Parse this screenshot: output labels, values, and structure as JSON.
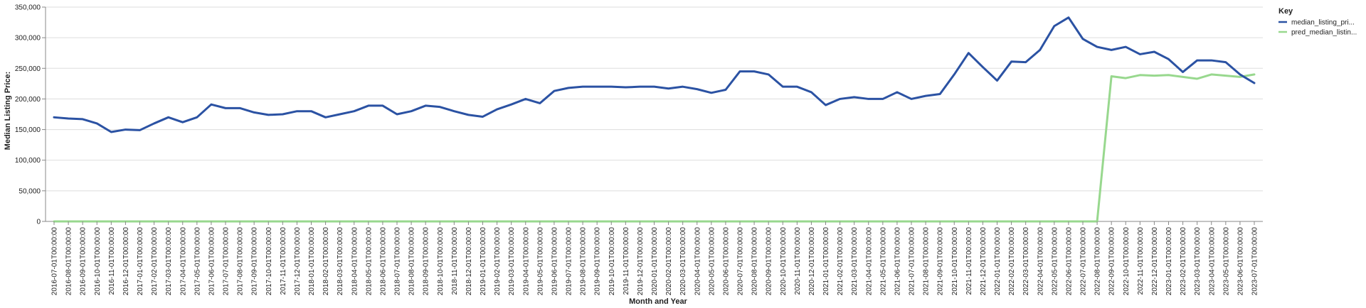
{
  "chart_data": {
    "type": "line",
    "title": "",
    "xlabel": "Month and Year",
    "ylabel": "Median Listing Price:",
    "ylim": [
      0,
      350000
    ],
    "yticks": [
      0,
      50000,
      100000,
      150000,
      200000,
      250000,
      300000,
      350000
    ],
    "ytick_labels": [
      "0",
      "50,000",
      "100,000",
      "150,000",
      "200,000",
      "250,000",
      "300,000",
      "350,000"
    ],
    "grid": true,
    "legend": {
      "title": "Key",
      "placement": "top-right"
    },
    "categories": [
      "2016-07-01T00:00:00",
      "2016-08-01T00:00:00",
      "2016-09-01T00:00:00",
      "2016-10-01T00:00:00",
      "2016-11-01T00:00:00",
      "2016-12-01T00:00:00",
      "2017-01-01T00:00:00",
      "2017-02-01T00:00:00",
      "2017-03-01T00:00:00",
      "2017-04-01T00:00:00",
      "2017-05-01T00:00:00",
      "2017-06-01T00:00:00",
      "2017-07-01T00:00:00",
      "2017-08-01T00:00:00",
      "2017-09-01T00:00:00",
      "2017-10-01T00:00:00",
      "2017-11-01T00:00:00",
      "2017-12-01T00:00:00",
      "2018-01-01T00:00:00",
      "2018-02-01T00:00:00",
      "2018-03-01T00:00:00",
      "2018-04-01T00:00:00",
      "2018-05-01T00:00:00",
      "2018-06-01T00:00:00",
      "2018-07-01T00:00:00",
      "2018-08-01T00:00:00",
      "2018-09-01T00:00:00",
      "2018-10-01T00:00:00",
      "2018-11-01T00:00:00",
      "2018-12-01T00:00:00",
      "2019-01-01T00:00:00",
      "2019-02-01T00:00:00",
      "2019-03-01T00:00:00",
      "2019-04-01T00:00:00",
      "2019-05-01T00:00:00",
      "2019-06-01T00:00:00",
      "2019-07-01T00:00:00",
      "2019-08-01T00:00:00",
      "2019-09-01T00:00:00",
      "2019-10-01T00:00:00",
      "2019-11-01T00:00:00",
      "2019-12-01T00:00:00",
      "2020-01-01T00:00:00",
      "2020-02-01T00:00:00",
      "2020-03-01T00:00:00",
      "2020-04-01T00:00:00",
      "2020-05-01T00:00:00",
      "2020-06-01T00:00:00",
      "2020-07-01T00:00:00",
      "2020-08-01T00:00:00",
      "2020-09-01T00:00:00",
      "2020-10-01T00:00:00",
      "2020-11-01T00:00:00",
      "2020-12-01T00:00:00",
      "2021-01-01T00:00:00",
      "2021-02-01T00:00:00",
      "2021-03-01T00:00:00",
      "2021-04-01T00:00:00",
      "2021-05-01T00:00:00",
      "2021-06-01T00:00:00",
      "2021-07-01T00:00:00",
      "2021-08-01T00:00:00",
      "2021-09-01T00:00:00",
      "2021-10-01T00:00:00",
      "2021-11-01T00:00:00",
      "2021-12-01T00:00:00",
      "2022-01-01T00:00:00",
      "2022-02-01T00:00:00",
      "2022-03-01T00:00:00",
      "2022-04-01T00:00:00",
      "2022-05-01T00:00:00",
      "2022-06-01T00:00:00",
      "2022-07-01T00:00:00",
      "2022-08-01T00:00:00",
      "2022-09-01T00:00:00",
      "2022-10-01T00:00:00",
      "2022-11-01T00:00:00",
      "2022-12-01T00:00:00",
      "2023-01-01T00:00:00",
      "2023-02-01T00:00:00",
      "2023-03-01T00:00:00",
      "2023-04-01T00:00:00",
      "2023-05-01T00:00:00",
      "2023-06-01T00:00:00",
      "2023-07-01T00:00:00"
    ],
    "series": [
      {
        "name": "median_listing_pri...",
        "color": "#2b52a3",
        "values": [
          170000,
          168000,
          167000,
          160000,
          146000,
          150000,
          149000,
          160000,
          170000,
          162000,
          170000,
          191000,
          185000,
          185000,
          178000,
          174000,
          175000,
          180000,
          180000,
          170000,
          175000,
          180000,
          189000,
          189000,
          175000,
          180000,
          189000,
          187000,
          180000,
          174000,
          171000,
          183000,
          191000,
          200000,
          193000,
          213000,
          218000,
          220000,
          220000,
          220000,
          219000,
          220000,
          220000,
          217000,
          220000,
          216000,
          210000,
          215000,
          245000,
          245000,
          240000,
          220000,
          220000,
          211000,
          190000,
          200000,
          203000,
          200000,
          200000,
          211000,
          200000,
          205000,
          208000,
          240000,
          275000,
          252000,
          230000,
          261000,
          260000,
          280000,
          319000,
          333000,
          298000,
          285000,
          280000,
          285000,
          273000,
          277000,
          265000,
          244000,
          263000,
          263000,
          260000,
          240000,
          226000
        ]
      },
      {
        "name": "pred_median_listin...",
        "color": "#98d88e",
        "values": [
          0,
          0,
          0,
          0,
          0,
          0,
          0,
          0,
          0,
          0,
          0,
          0,
          0,
          0,
          0,
          0,
          0,
          0,
          0,
          0,
          0,
          0,
          0,
          0,
          0,
          0,
          0,
          0,
          0,
          0,
          0,
          0,
          0,
          0,
          0,
          0,
          0,
          0,
          0,
          0,
          0,
          0,
          0,
          0,
          0,
          0,
          0,
          0,
          0,
          0,
          0,
          0,
          0,
          0,
          0,
          0,
          0,
          0,
          0,
          0,
          0,
          0,
          0,
          0,
          0,
          0,
          0,
          0,
          0,
          0,
          0,
          0,
          0,
          0,
          237000,
          234000,
          239000,
          238000,
          239000,
          236000,
          233000,
          240000,
          238000,
          236000,
          240000
        ]
      }
    ]
  }
}
